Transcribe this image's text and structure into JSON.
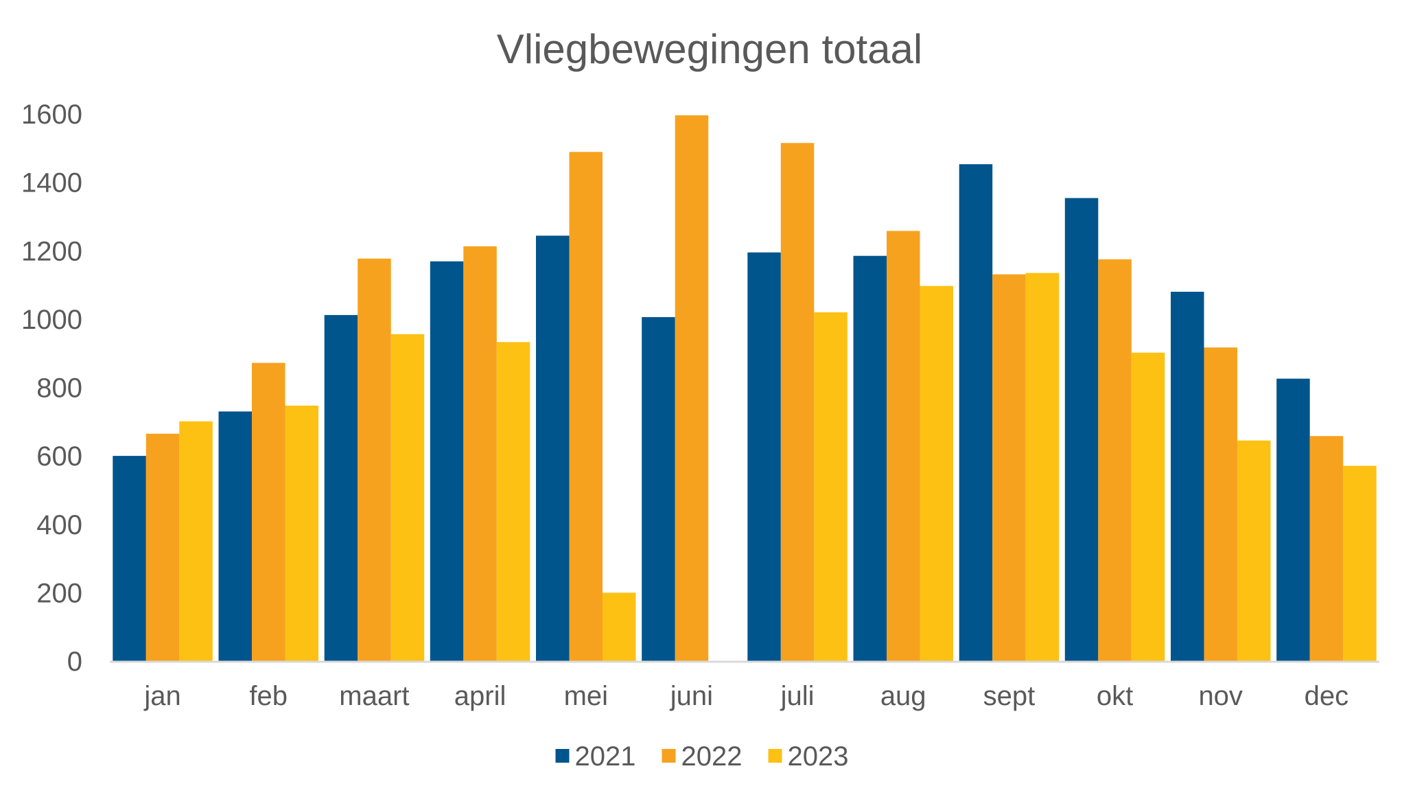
{
  "chart_data": {
    "type": "bar",
    "title": "Vliegbewegingen totaal",
    "xlabel": "",
    "ylabel": "",
    "ylim": [
      0,
      1600
    ],
    "yticks": [
      0,
      200,
      400,
      600,
      800,
      1000,
      1200,
      1400,
      1600
    ],
    "grid": false,
    "legend_position": "bottom",
    "categories": [
      "jan",
      "feb",
      "maart",
      "april",
      "mei",
      "juni",
      "juli",
      "aug",
      "sept",
      "okt",
      "nov",
      "dec"
    ],
    "series": [
      {
        "name": "2021",
        "color": "#00558C",
        "values": [
          602,
          732,
          1014,
          1171,
          1246,
          1008,
          1197,
          1187,
          1455,
          1356,
          1082,
          828
        ]
      },
      {
        "name": "2022",
        "color": "#F6A21F",
        "values": [
          667,
          874,
          1179,
          1215,
          1491,
          1598,
          1517,
          1260,
          1133,
          1177,
          919,
          660
        ]
      },
      {
        "name": "2023",
        "color": "#FDC114",
        "values": [
          703,
          749,
          958,
          935,
          202,
          null,
          1022,
          1099,
          1137,
          904,
          647,
          573
        ]
      }
    ]
  }
}
